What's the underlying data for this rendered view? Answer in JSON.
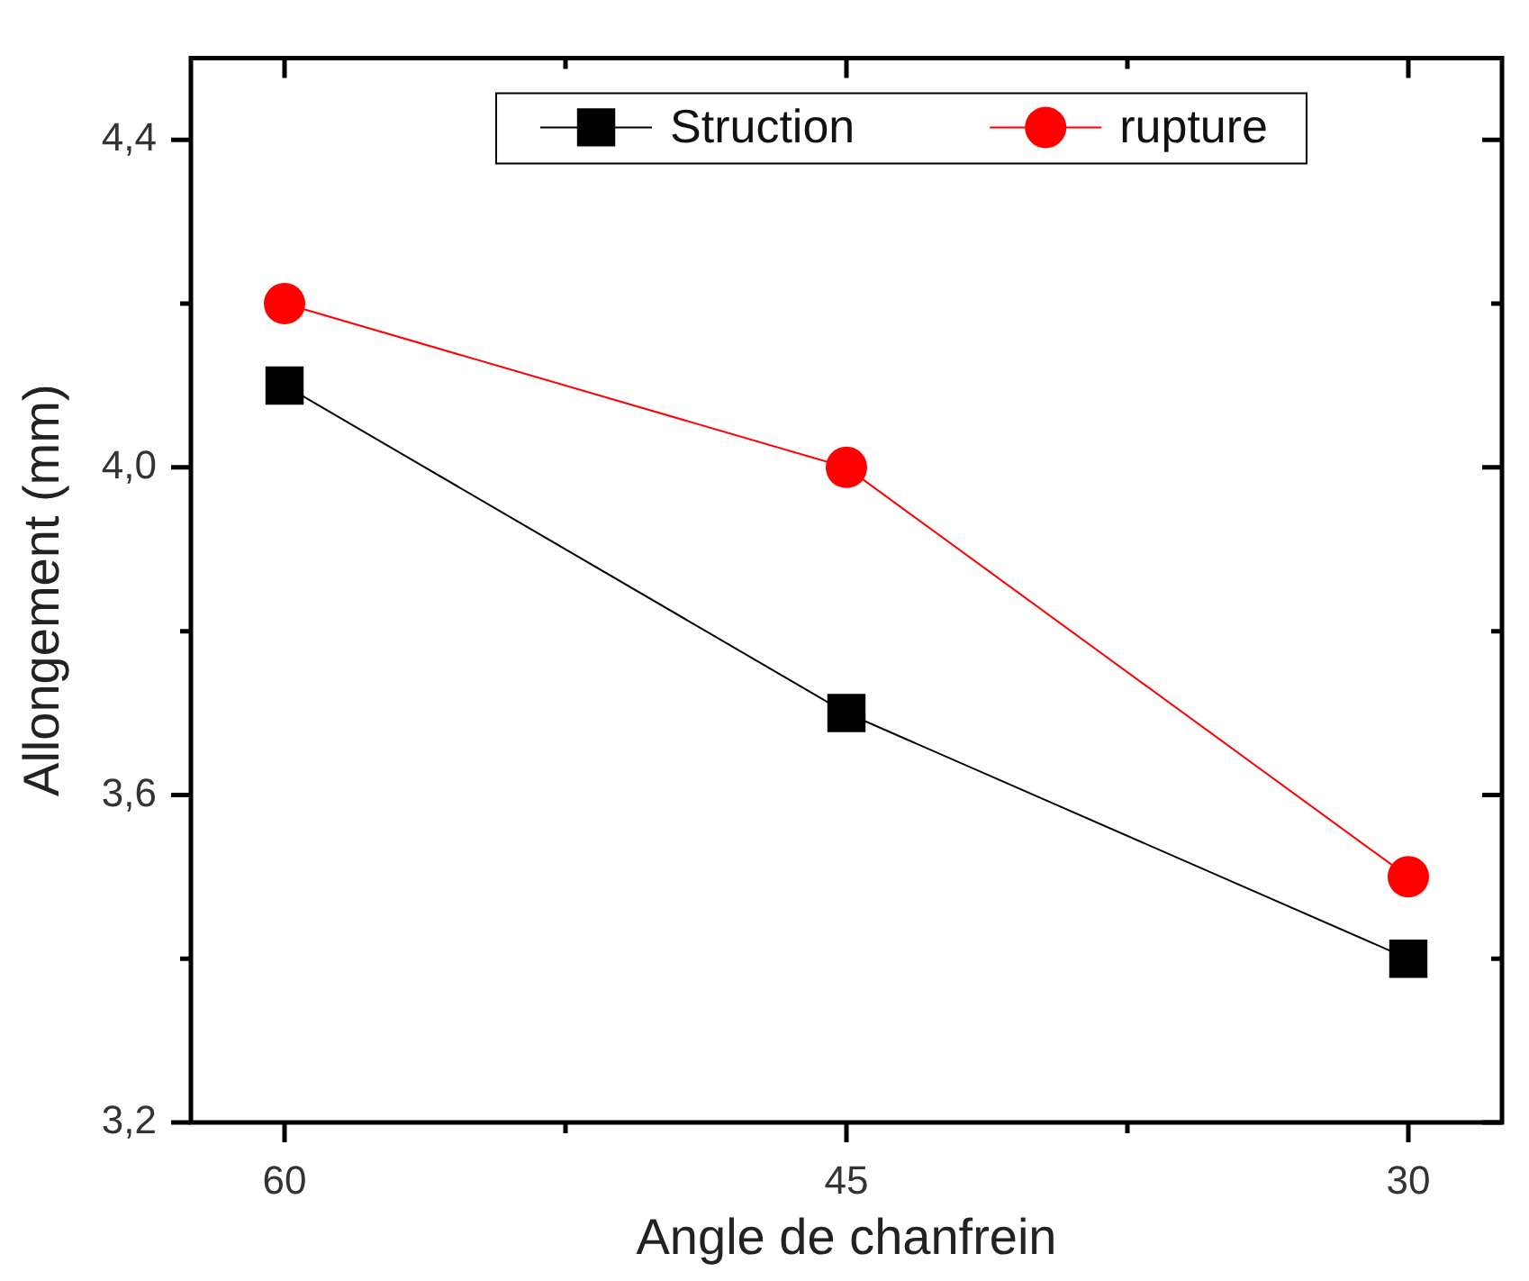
{
  "chart_data": {
    "type": "line",
    "xlabel": "Angle de chanfrein",
    "ylabel": "Allongement (mm)",
    "x": [
      60,
      45,
      30
    ],
    "xlim": [
      62.5,
      27.5
    ],
    "xticks": [
      60,
      {
        "value": 52.5,
        "label": null
      },
      45,
      {
        "value": 37.5,
        "label": null
      },
      30
    ],
    "ylim": [
      3.2,
      4.5
    ],
    "yticks": [
      {
        "value": 3.2,
        "label": "3,2"
      },
      {
        "value": 3.4,
        "label": null
      },
      {
        "value": 3.6,
        "label": "3,6"
      },
      {
        "value": 3.8,
        "label": null
      },
      {
        "value": 4.0,
        "label": "4,0"
      },
      {
        "value": 4.2,
        "label": null
      },
      {
        "value": 4.4,
        "label": "4,4"
      }
    ],
    "series": [
      {
        "name": "Struction",
        "color": "#000000",
        "marker": "square",
        "values": [
          4.1,
          3.7,
          3.4
        ]
      },
      {
        "name": "rupture",
        "color": "#ff0000",
        "marker": "circle",
        "values": [
          4.2,
          4.0,
          3.5
        ]
      }
    ],
    "legend": "top",
    "grid": false,
    "line_style": "solid"
  }
}
